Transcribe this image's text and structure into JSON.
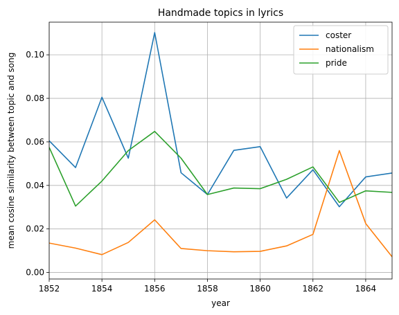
{
  "chart_data": {
    "type": "line",
    "title": "Handmade topics in lyrics",
    "xlabel": "year",
    "ylabel": "mean cosine similarity between topic and song",
    "xlim": [
      1852,
      1865
    ],
    "ylim": [
      -0.003,
      0.115
    ],
    "x_ticks": [
      1852,
      1854,
      1856,
      1858,
      1860,
      1862,
      1864
    ],
    "x_tick_labels": [
      "1852",
      "1854",
      "1856",
      "1858",
      "1860",
      "1862",
      "1864"
    ],
    "y_ticks": [
      0.0,
      0.02,
      0.04,
      0.06,
      0.08,
      0.1
    ],
    "y_tick_labels": [
      "0.00",
      "0.02",
      "0.04",
      "0.06",
      "0.08",
      "0.10"
    ],
    "grid": true,
    "legend_position": "top-right",
    "x": [
      1852,
      1853,
      1854,
      1855,
      1856,
      1857,
      1858,
      1859,
      1860,
      1861,
      1862,
      1863,
      1864,
      1865
    ],
    "series": [
      {
        "name": "coster",
        "color": "#1f77b4",
        "values": [
          0.0605,
          0.0482,
          0.0805,
          0.0525,
          0.1102,
          0.0458,
          0.0358,
          0.0561,
          0.0578,
          0.0342,
          0.0472,
          0.0302,
          0.0439,
          0.0457
        ]
      },
      {
        "name": "nationalism",
        "color": "#ff7f0e",
        "values": [
          0.0135,
          0.0112,
          0.0082,
          0.0138,
          0.0242,
          0.011,
          0.01,
          0.0095,
          0.0097,
          0.0122,
          0.0175,
          0.056,
          0.0225,
          0.0072
        ]
      },
      {
        "name": "pride",
        "color": "#2ca02c",
        "values": [
          0.0575,
          0.0305,
          0.042,
          0.056,
          0.0648,
          0.0525,
          0.0358,
          0.0388,
          0.0385,
          0.0428,
          0.0485,
          0.0322,
          0.0375,
          0.0368
        ]
      }
    ]
  }
}
